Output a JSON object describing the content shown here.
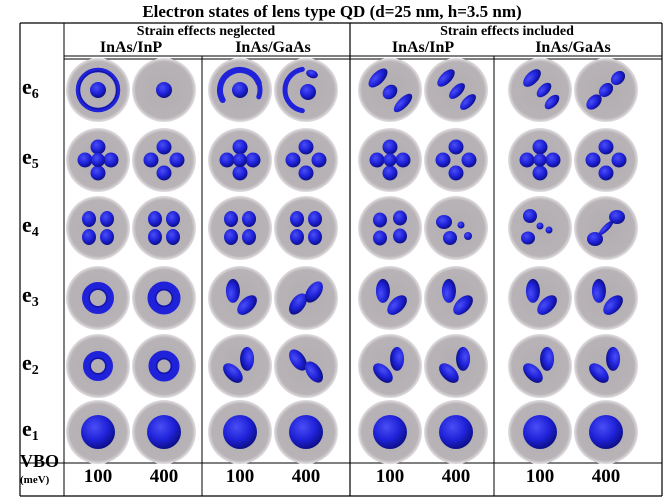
{
  "title": "Electron states of lens type QD (d=25 nm, h=3.5 nm)",
  "groups": [
    {
      "label": "Strain effects neglected"
    },
    {
      "label": "Strain effects included"
    }
  ],
  "materials": [
    "InAs/InP",
    "InAs/GaAs",
    "InAs/InP",
    "InAs/GaAs"
  ],
  "states": [
    {
      "base": "e",
      "sub": "6"
    },
    {
      "base": "e",
      "sub": "5"
    },
    {
      "base": "e",
      "sub": "4"
    },
    {
      "base": "e",
      "sub": "3"
    },
    {
      "base": "e",
      "sub": "2"
    },
    {
      "base": "e",
      "sub": "1"
    }
  ],
  "vbo": {
    "label": "VBO",
    "unit": "(meV)",
    "values": [
      "100",
      "400",
      "100",
      "400",
      "100",
      "400",
      "100",
      "400"
    ]
  },
  "colors": {
    "disk": "#b8b3b7",
    "disk_edge": "#d4d0d3",
    "orbital": "#1f22d8",
    "orbital_dark": "#0a0c7a",
    "grid": "#000000"
  }
}
